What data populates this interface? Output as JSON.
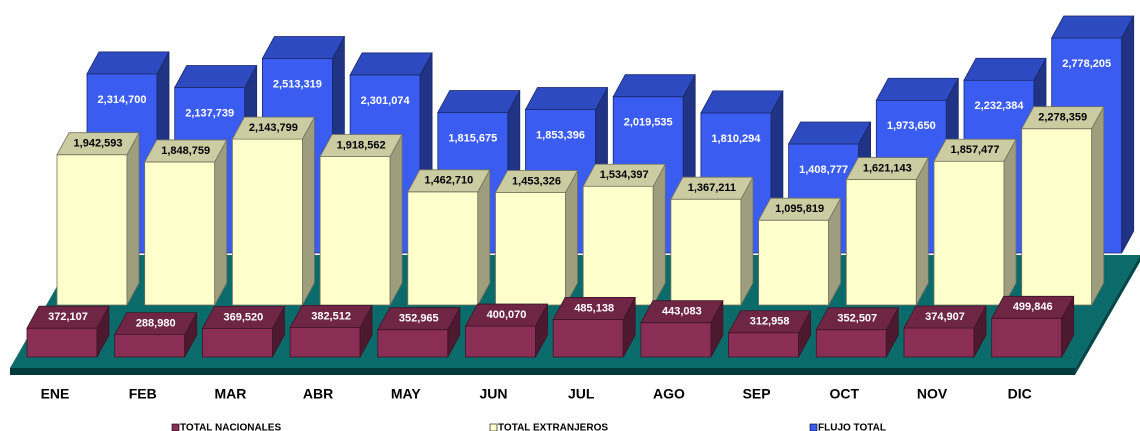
{
  "chart_data": {
    "type": "bar3d",
    "categories": [
      "ENE",
      "FEB",
      "MAR",
      "ABR",
      "MAY",
      "JUN",
      "JUL",
      "AGO",
      "SEP",
      "OCT",
      "NOV",
      "DIC"
    ],
    "series": [
      {
        "name": "TOTAL NACIONALES",
        "color": "#8b2e55",
        "values": [
          372107,
          288980,
          369520,
          382512,
          352965,
          400070,
          485138,
          443083,
          312958,
          352507,
          374907,
          499846
        ],
        "value_labels": [
          "372,107",
          "288,980",
          "369,520",
          "382,512",
          "352,965",
          "400,070",
          "485,138",
          "443,083",
          "312,958",
          "352,507",
          "374,907",
          "499,846"
        ]
      },
      {
        "name": "TOTAL EXTRANJEROS",
        "color": "#ffffcc",
        "values": [
          1942593,
          1848759,
          2143799,
          1918562,
          1462710,
          1453326,
          1534397,
          1367211,
          1095819,
          1621143,
          1857477,
          2278359
        ],
        "value_labels": [
          "1,942,593",
          "1,848,759",
          "2,143,799",
          "1,918,562",
          "1,462,710",
          "1,453,326",
          "1,534,397",
          "1,367,211",
          "1,095,819",
          "1,621,143",
          "1,857,477",
          "2,278,359"
        ]
      },
      {
        "name": "FLUJO TOTAL",
        "color": "#3a5cf0",
        "values": [
          2314700,
          2137739,
          2513319,
          2301074,
          1815675,
          1853396,
          2019535,
          1810294,
          1408777,
          1973650,
          2232384,
          2778205
        ],
        "value_labels": [
          "2,314,700",
          "2,137,739",
          "2,513,319",
          "2,301,074",
          "1,815,675",
          "1,853,396",
          "2,019,535",
          "1,810,294",
          "1,408,777",
          "1,973,650",
          "2,232,384",
          "2,778,205"
        ]
      }
    ]
  }
}
